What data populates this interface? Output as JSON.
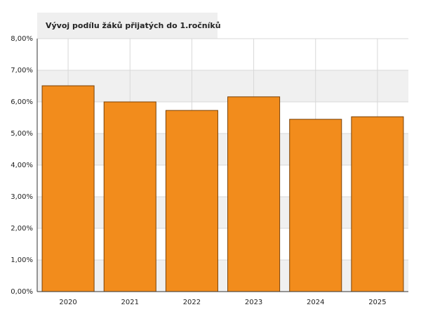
{
  "chart_data": {
    "type": "bar",
    "title": "Vývoj podílu žáků přijatých do 1.ročníků",
    "categories": [
      "2020",
      "2021",
      "2022",
      "2023",
      "2024",
      "2025"
    ],
    "values": [
      6.51,
      6.0,
      5.73,
      6.16,
      5.45,
      5.53
    ],
    "color": "#f28c1c",
    "ylim": [
      0,
      8
    ],
    "yticks": [
      {
        "value": 0,
        "label": "0,00%"
      },
      {
        "value": 1,
        "label": "1,00%"
      },
      {
        "value": 2,
        "label": "2,00%"
      },
      {
        "value": 3,
        "label": "3,00%"
      },
      {
        "value": 4,
        "label": "4,00%"
      },
      {
        "value": 5,
        "label": "5,00%"
      },
      {
        "value": 6,
        "label": "6,00%"
      },
      {
        "value": 7,
        "label": "7,00%"
      },
      {
        "value": 8,
        "label": "8,00%"
      }
    ],
    "grid": true
  }
}
